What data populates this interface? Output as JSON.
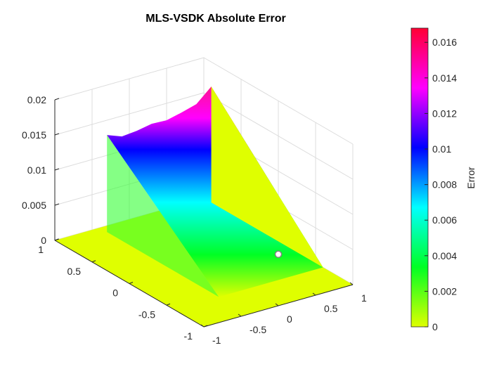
{
  "chart_data": {
    "type": "surface3d",
    "title": "MLS-VSDK Absolute Error",
    "x_ticks": [
      "-1",
      "-0.5",
      "0",
      "0.5",
      "1"
    ],
    "y_ticks": [
      "-1",
      "-0.5",
      "0",
      "0.5",
      "1"
    ],
    "z_ticks": [
      "0",
      "0.005",
      "0.01",
      "0.015",
      "0.02"
    ],
    "xlim": [
      -1,
      1
    ],
    "ylim": [
      -1,
      1
    ],
    "zlim": [
      0,
      0.02
    ],
    "grid": true,
    "colormap": "hsv",
    "colorbar": {
      "label": "Error",
      "limits": [
        0,
        0.0168
      ],
      "ticks": [
        "0",
        "0.002",
        "0.004",
        "0.006",
        "0.008",
        "0.01",
        "0.012",
        "0.014",
        "0.016"
      ],
      "colors": [
        "#dfff00",
        "#00ff24",
        "#00ffff",
        "#0000ff",
        "#ff00ff",
        "#ff0033"
      ]
    },
    "surface_description": "Error is ~0 on the flat plane; a raised prism region for x in [-0.4, 1] and y in [-0.6, 0.9] rises from 0 at y=-0.6 to a ridge at y=0.9, peaking near 0.0165 at x=1.",
    "ridge": [
      {
        "x": -0.4,
        "z": 0.0138
      },
      {
        "x": -0.2,
        "z": 0.013
      },
      {
        "x": 0.0,
        "z": 0.0132
      },
      {
        "x": 0.2,
        "z": 0.0136
      },
      {
        "x": 0.4,
        "z": 0.0135
      },
      {
        "x": 0.6,
        "z": 0.014
      },
      {
        "x": 0.8,
        "z": 0.0146
      },
      {
        "x": 1.0,
        "z": 0.0165
      }
    ],
    "marker": {
      "x": 0.8,
      "y": -0.2,
      "z": 0.0
    }
  }
}
